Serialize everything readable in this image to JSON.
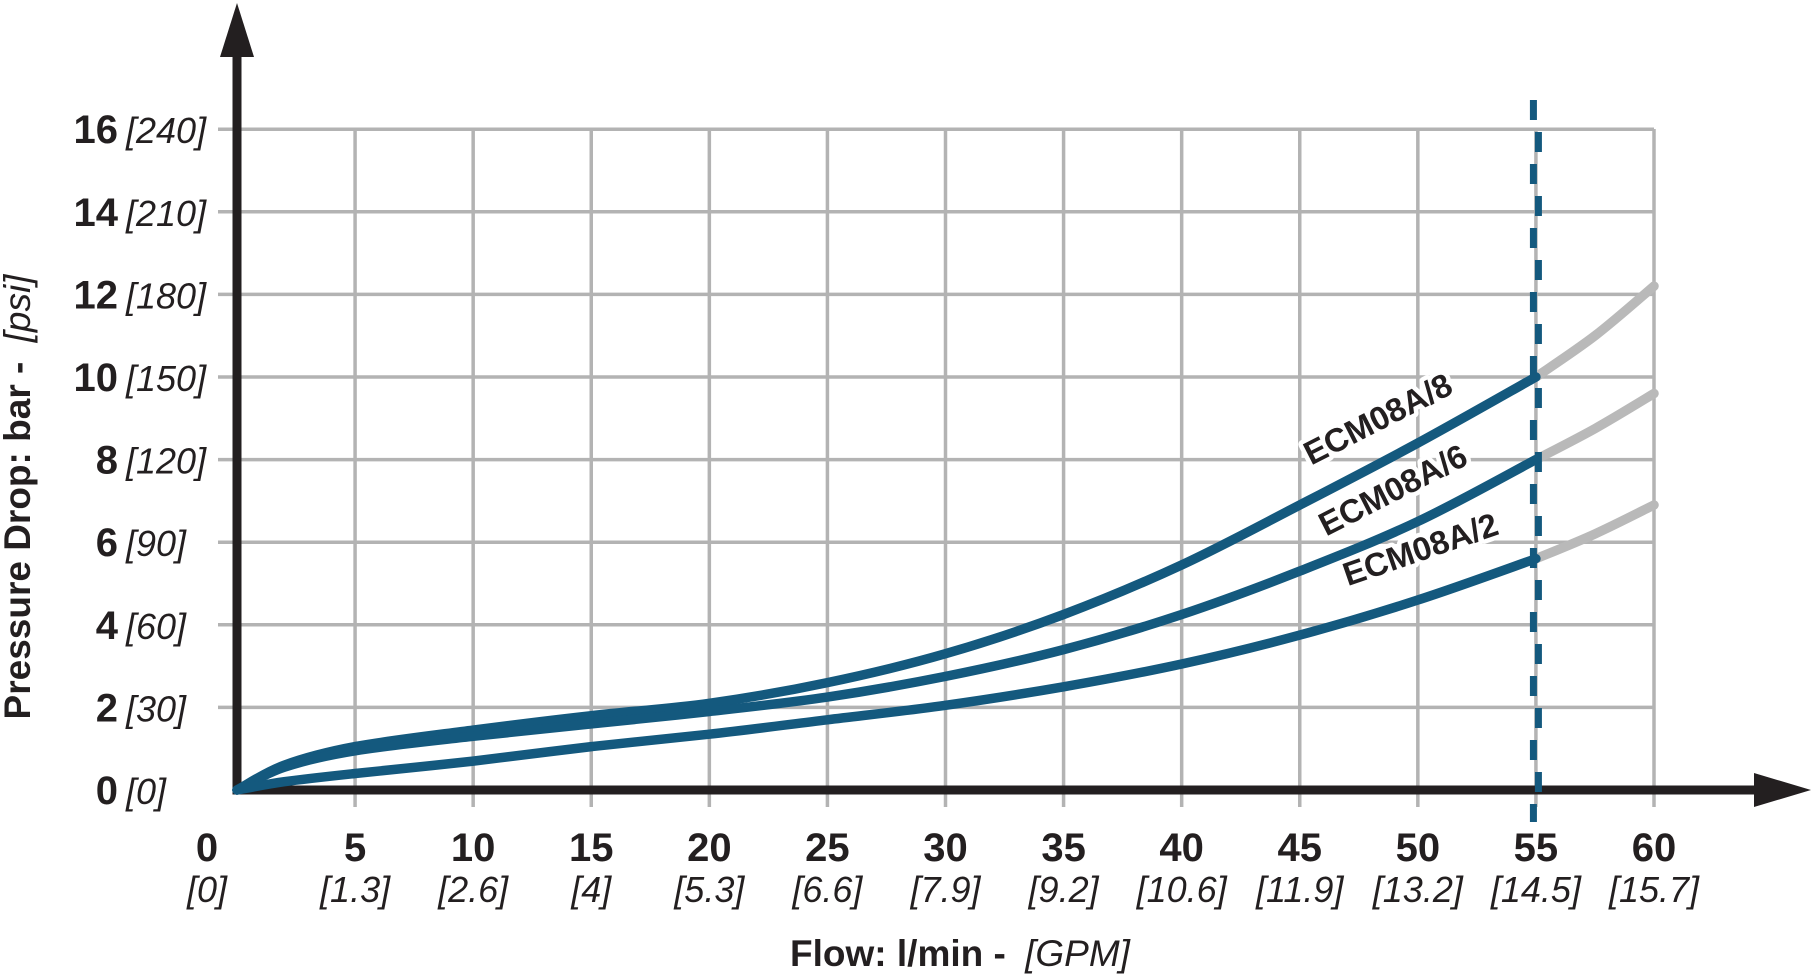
{
  "chart_data": {
    "type": "line",
    "title": "",
    "xlabel": {
      "main": "Flow: l/min -",
      "unit": "[GPM]"
    },
    "ylabel": {
      "main": "Pressure Drop: bar -",
      "unit": "[psi]"
    },
    "xlim": [
      0,
      60
    ],
    "ylim": [
      0,
      16
    ],
    "x_tick_step_lmin": 5,
    "y_tick_step_bar": 2,
    "grid": true,
    "legend_position": "on-curve-labels",
    "xticks": [
      {
        "lmin": "0",
        "gpm": "[0]"
      },
      {
        "lmin": "5",
        "gpm": "[1.3]"
      },
      {
        "lmin": "10",
        "gpm": "[2.6]"
      },
      {
        "lmin": "15",
        "gpm": "[4]"
      },
      {
        "lmin": "20",
        "gpm": "[5.3]"
      },
      {
        "lmin": "25",
        "gpm": "[6.6]"
      },
      {
        "lmin": "30",
        "gpm": "[7.9]"
      },
      {
        "lmin": "35",
        "gpm": "[9.2]"
      },
      {
        "lmin": "40",
        "gpm": "[10.6]"
      },
      {
        "lmin": "45",
        "gpm": "[11.9]"
      },
      {
        "lmin": "50",
        "gpm": "[13.2]"
      },
      {
        "lmin": "55",
        "gpm": "[14.5]"
      },
      {
        "lmin": "60",
        "gpm": "[15.7]"
      }
    ],
    "yticks": [
      {
        "bar": "0",
        "psi": "[0]"
      },
      {
        "bar": "2",
        "psi": "[30]"
      },
      {
        "bar": "4",
        "psi": "[60]"
      },
      {
        "bar": "6",
        "psi": "[90]"
      },
      {
        "bar": "8",
        "psi": "[120]"
      },
      {
        "bar": "10",
        "psi": "[150]"
      },
      {
        "bar": "12",
        "psi": "[180]"
      },
      {
        "bar": "14",
        "psi": "[210]"
      },
      {
        "bar": "16",
        "psi": "[240]"
      }
    ],
    "max_flow_marker": {
      "x_lmin": 55,
      "style": "dashed-vertical-line"
    },
    "series": [
      {
        "name": "ECM08A/8",
        "x": [
          0,
          2,
          5,
          10,
          15,
          20,
          25,
          30,
          35,
          40,
          45,
          50,
          55
        ],
        "values": [
          0,
          0.6,
          1.05,
          1.45,
          1.8,
          2.1,
          2.6,
          3.3,
          4.25,
          5.45,
          6.9,
          8.4,
          10.0
        ],
        "extension_x": [
          55,
          57.5,
          60
        ],
        "extension_values": [
          10.0,
          11.0,
          12.2
        ]
      },
      {
        "name": "ECM08A/6",
        "x": [
          0,
          2,
          5,
          10,
          15,
          20,
          25,
          30,
          35,
          40,
          45,
          50,
          55
        ],
        "values": [
          0,
          0.55,
          0.95,
          1.3,
          1.6,
          1.9,
          2.25,
          2.75,
          3.4,
          4.25,
          5.3,
          6.5,
          8.0
        ],
        "extension_x": [
          55,
          57.5,
          60
        ],
        "extension_values": [
          8.0,
          8.75,
          9.6
        ]
      },
      {
        "name": "ECM08A/2",
        "x": [
          0,
          2,
          5,
          10,
          15,
          20,
          25,
          30,
          35,
          40,
          45,
          50,
          55
        ],
        "values": [
          0,
          0.2,
          0.4,
          0.7,
          1.05,
          1.35,
          1.7,
          2.05,
          2.5,
          3.05,
          3.75,
          4.6,
          5.6
        ],
        "extension_x": [
          55,
          57.5,
          60
        ],
        "extension_values": [
          5.6,
          6.2,
          6.9
        ]
      }
    ],
    "colors": {
      "curve": "#14597E",
      "curve_extension": "#B9B9B9",
      "grid": "#B3B3B3",
      "axis": "#231F20",
      "text": "#231F20",
      "dashed_line": "#14597E",
      "background": "#FFFFFF"
    }
  }
}
